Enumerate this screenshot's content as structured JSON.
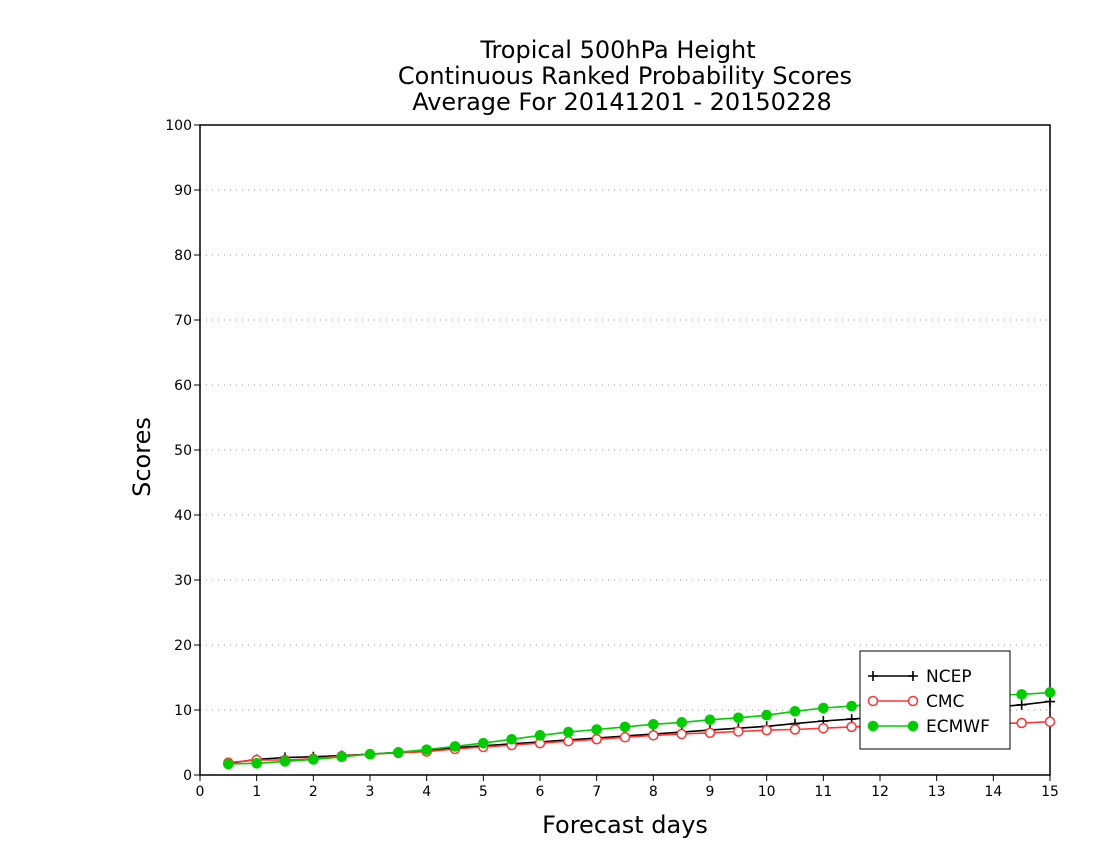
{
  "chart_data": {
    "type": "line",
    "title": [
      "Tropical 500hPa Height",
      "Continuous Ranked Probability Scores",
      "Average For 20141201 - 20150228"
    ],
    "xlabel": "Forecast days",
    "ylabel": "Scores",
    "xlim": [
      0,
      15
    ],
    "ylim": [
      0,
      100
    ],
    "xticks": [
      0,
      1,
      2,
      3,
      4,
      5,
      6,
      7,
      8,
      9,
      10,
      11,
      12,
      13,
      14,
      15
    ],
    "yticks": [
      0,
      10,
      20,
      30,
      40,
      50,
      60,
      70,
      80,
      90,
      100
    ],
    "grid": "horizontal-dotted",
    "legend_position": "bottom-right",
    "x": [
      0.5,
      1,
      1.5,
      2,
      2.5,
      3,
      3.5,
      4,
      4.5,
      5,
      5.5,
      6,
      6.5,
      7,
      7.5,
      8,
      8.5,
      9,
      9.5,
      10,
      10.5,
      11,
      11.5,
      12,
      12.5,
      13,
      13.5,
      14,
      14.5,
      15
    ],
    "series": [
      {
        "name": "NCEP",
        "color": "#000000",
        "marker": "plus",
        "values": [
          1.8,
          2.4,
          2.7,
          2.8,
          3.0,
          3.2,
          3.5,
          3.8,
          4.2,
          4.5,
          4.8,
          5.1,
          5.4,
          5.7,
          6.0,
          6.3,
          6.6,
          6.9,
          7.2,
          7.5,
          7.9,
          8.3,
          8.6,
          8.9,
          9.2,
          9.6,
          10.0,
          10.4,
          10.8,
          11.3
        ]
      },
      {
        "name": "CMC",
        "color": "#ff3333",
        "marker": "open-circle",
        "values": [
          1.9,
          2.3,
          2.3,
          2.5,
          2.9,
          3.2,
          3.4,
          3.6,
          4.0,
          4.3,
          4.6,
          4.9,
          5.2,
          5.5,
          5.8,
          6.1,
          6.3,
          6.5,
          6.7,
          6.9,
          7.0,
          7.2,
          7.4,
          7.5,
          7.6,
          7.7,
          7.8,
          7.9,
          8.0,
          8.2
        ]
      },
      {
        "name": "ECMWF",
        "color": "#00cc00",
        "marker": "filled-circle",
        "values": [
          1.7,
          1.8,
          2.1,
          2.4,
          2.8,
          3.2,
          3.5,
          3.9,
          4.4,
          4.9,
          5.5,
          6.1,
          6.6,
          7.0,
          7.4,
          7.8,
          8.1,
          8.5,
          8.8,
          9.2,
          9.8,
          10.3,
          10.6,
          11.0,
          11.4,
          11.8,
          12.1,
          12.3,
          12.4,
          12.7
        ]
      }
    ]
  }
}
